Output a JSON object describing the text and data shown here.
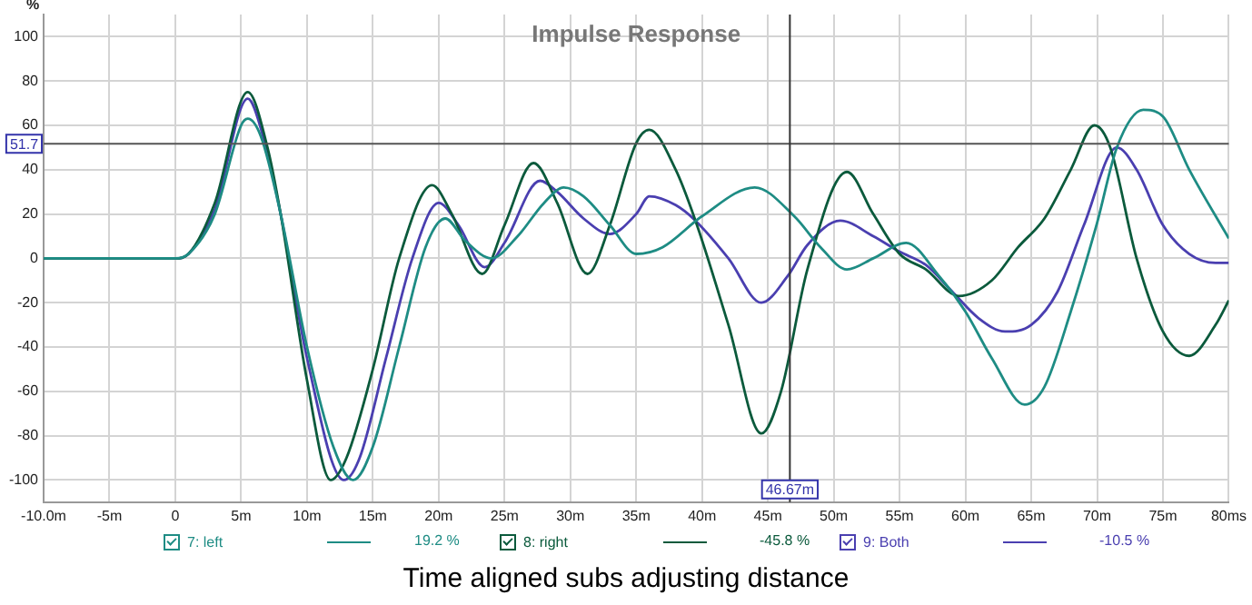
{
  "chart_data": {
    "type": "line",
    "title": "Impulse Response",
    "ylabel": "%",
    "annotations": [
      "19.2 %",
      "-45.8 %",
      "-10.5 %",
      "Time aligned subs adjusting distance"
    ],
    "series": [
      {
        "name": "7: left",
        "color": "#1e8c84",
        "x": [
          -10,
          0,
          1,
          3,
          5,
          5.5,
          6.5,
          8,
          10,
          12,
          13.5,
          15,
          17,
          19,
          20.5,
          22,
          24,
          26,
          28,
          29.5,
          31,
          33,
          35,
          37,
          40,
          44,
          47,
          49,
          51,
          53,
          55.5,
          58,
          60,
          62,
          64.5,
          66,
          68,
          70,
          71.5,
          73.5,
          75,
          77,
          80
        ],
        "values": [
          0,
          0,
          2,
          20,
          60,
          63,
          55,
          20,
          -40,
          -85,
          -100,
          -85,
          -40,
          5,
          18,
          8,
          0,
          10,
          25,
          32,
          28,
          15,
          2,
          5,
          19,
          32,
          19,
          5,
          -5,
          0,
          7,
          -8,
          -24,
          -45,
          -66,
          -58,
          -24,
          16,
          50,
          67,
          64,
          40,
          9
        ]
      },
      {
        "name": "8: right",
        "color": "#0b5a3c",
        "x": [
          -10,
          0,
          1,
          3,
          5.5,
          7,
          8,
          10,
          11.8,
          13,
          15,
          17,
          19.5,
          21,
          23.3,
          25,
          27.2,
          29,
          31.3,
          33,
          35,
          36,
          38,
          39.5,
          42,
          44.5,
          46,
          48,
          51,
          53,
          55,
          57,
          59.5,
          62,
          64,
          66,
          68,
          69.8,
          71,
          73,
          75,
          77,
          79,
          80
        ],
        "values": [
          0,
          0,
          2,
          25,
          75,
          50,
          20,
          -55,
          -100,
          -90,
          -50,
          0,
          33,
          20,
          -7,
          15,
          43,
          25,
          -7,
          15,
          52,
          58,
          40,
          17,
          -30,
          -79,
          -60,
          -5,
          39,
          20,
          2,
          -5,
          -17,
          -10,
          5,
          18,
          40,
          60,
          50,
          0,
          -33,
          -44,
          -30,
          -19
        ]
      },
      {
        "name": "9: Both",
        "color": "#4a3fb0",
        "x": [
          -10,
          0,
          1,
          3,
          5.5,
          6.8,
          8,
          10,
          12.8,
          14,
          16,
          18,
          20,
          21.5,
          23.5,
          25,
          27.7,
          29,
          31,
          33,
          35,
          36,
          38,
          39.5,
          42,
          44.5,
          46.5,
          48,
          50.5,
          53,
          55,
          57,
          59,
          61,
          63,
          65,
          67,
          69,
          71.5,
          73,
          75,
          77,
          79,
          80
        ],
        "values": [
          0,
          0,
          2,
          22,
          72,
          52,
          20,
          -45,
          -100,
          -90,
          -45,
          0,
          25,
          15,
          -4,
          7,
          35,
          30,
          18,
          11,
          20,
          28,
          24,
          17,
          0,
          -20,
          -8,
          6,
          17,
          10,
          3,
          -3,
          -15,
          -27,
          -33,
          -30,
          -15,
          15,
          50,
          40,
          15,
          2,
          -2,
          -2
        ]
      }
    ],
    "xlim": [
      -10,
      80
    ],
    "xticks": [
      {
        "value": -10,
        "label": "-10.0m"
      },
      {
        "value": -5,
        "label": "-5m"
      },
      0,
      {
        "value": 5,
        "label": "5m"
      },
      {
        "value": 10,
        "label": "10m"
      },
      {
        "value": 15,
        "label": "15m"
      },
      {
        "value": 20,
        "label": "20m"
      },
      {
        "value": 25,
        "label": "25m"
      },
      {
        "value": 30,
        "label": "30m"
      },
      {
        "value": 35,
        "label": "35m"
      },
      {
        "value": 40,
        "label": "40m"
      },
      {
        "value": 45,
        "label": "45m"
      },
      {
        "value": 50,
        "label": "50m"
      },
      {
        "value": 55,
        "label": "55m"
      },
      {
        "value": 60,
        "label": "60m"
      },
      {
        "value": 65,
        "label": "65m"
      },
      {
        "value": 70,
        "label": "70m"
      },
      {
        "value": 75,
        "label": "75m"
      },
      {
        "value": 80,
        "label": "80ms"
      }
    ],
    "ylim": [
      -110,
      110
    ],
    "yticks": [
      -100,
      -80,
      -60,
      -40,
      -20,
      0,
      20,
      40,
      60,
      80,
      100
    ],
    "ref_lines": [
      {
        "axis": "y",
        "value": 51.7,
        "label": "51.7",
        "color": "#555555"
      },
      {
        "axis": "x",
        "value": 46.67,
        "label": "46.67m",
        "color": "#333333"
      }
    ],
    "grid": true,
    "legend": "bottom",
    "marker": "none",
    "line_style": "solid"
  }
}
